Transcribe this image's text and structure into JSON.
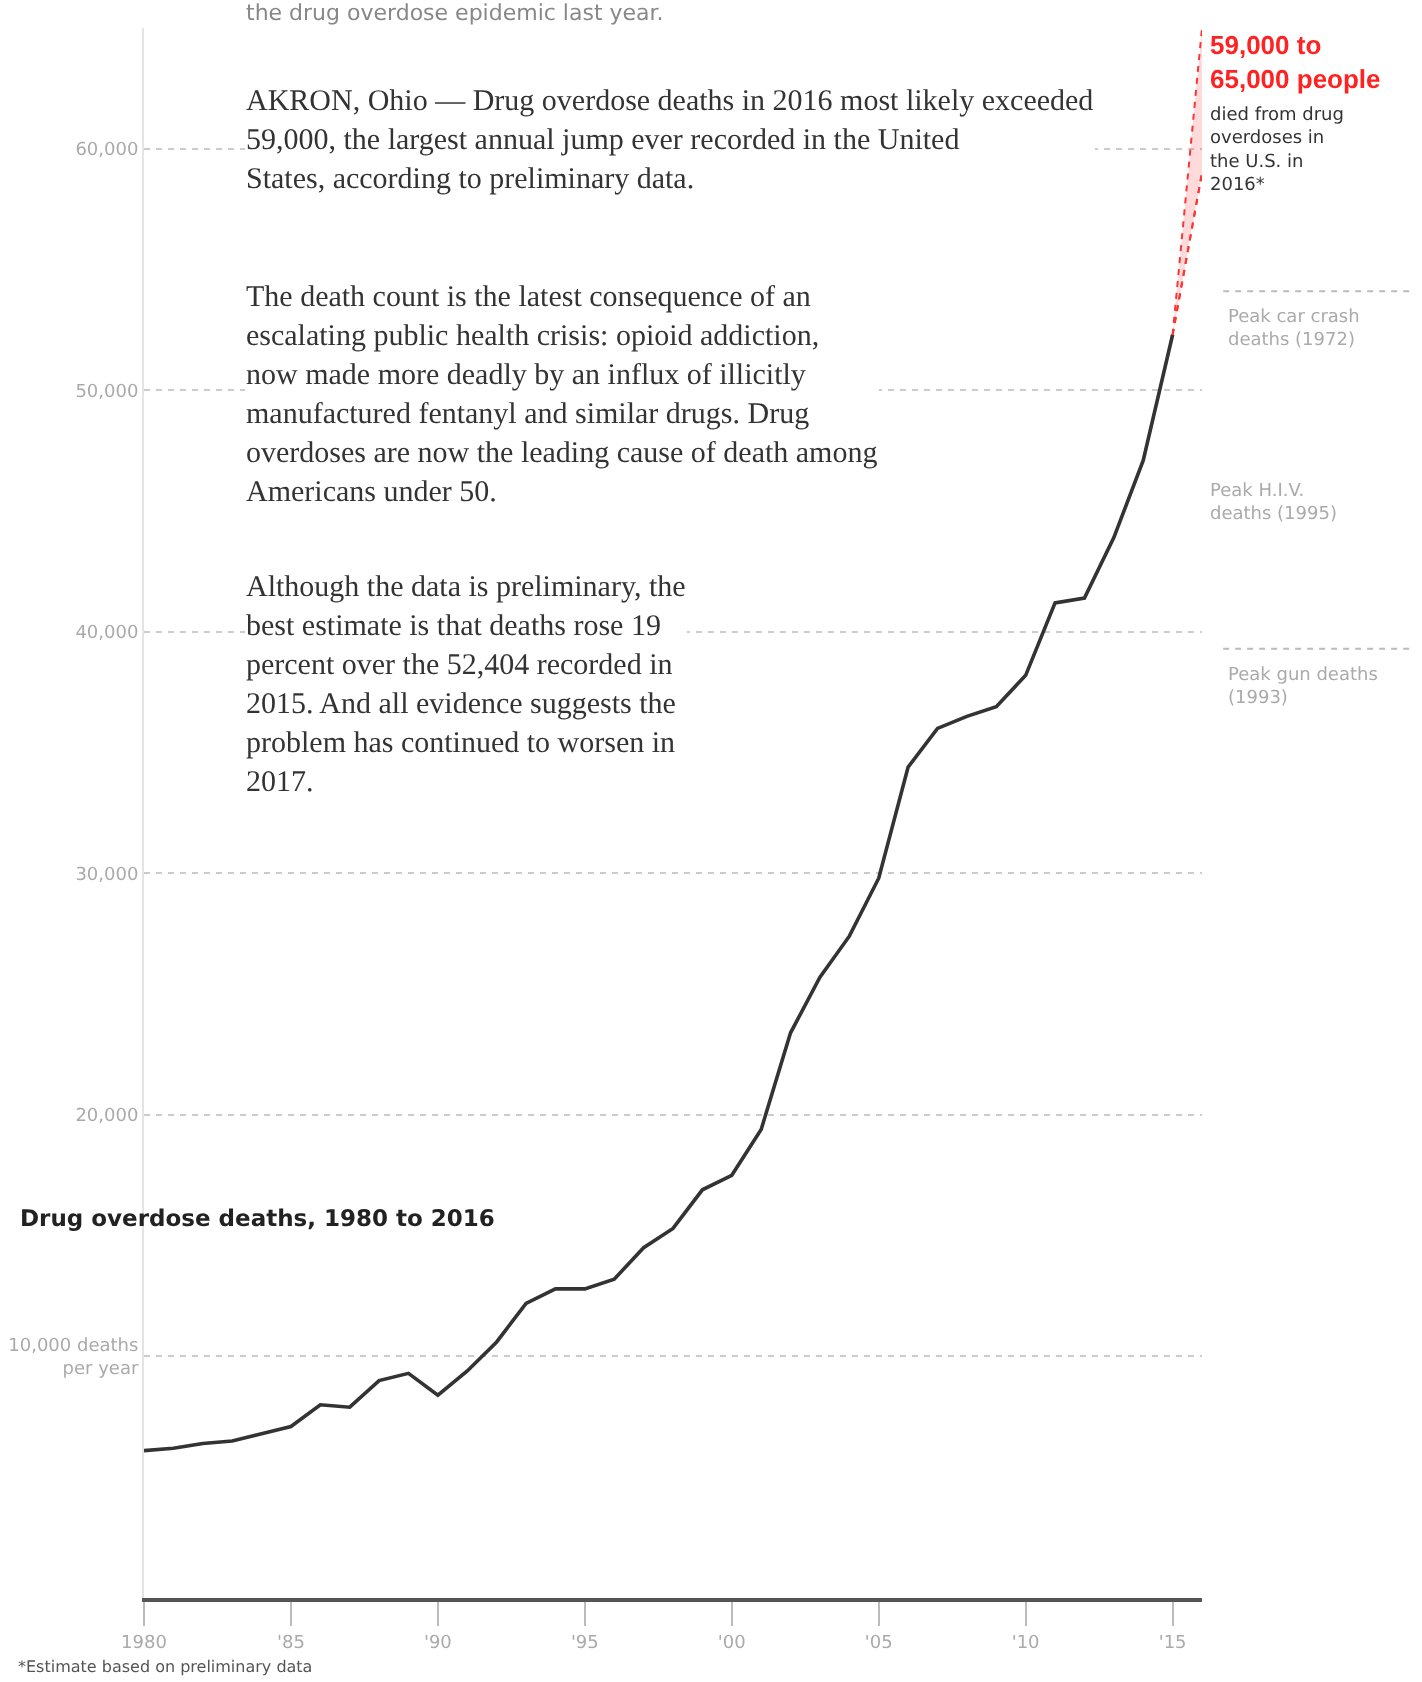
{
  "chart_data": {
    "type": "line",
    "title": "Drug overdose deaths, 1980 to 2016",
    "x": [
      1980,
      1981,
      1982,
      1983,
      1984,
      1985,
      1986,
      1987,
      1988,
      1989,
      1990,
      1991,
      1992,
      1993,
      1994,
      1995,
      1996,
      1997,
      1998,
      1999,
      2000,
      2001,
      2002,
      2003,
      2004,
      2005,
      2006,
      2007,
      2008,
      2009,
      2010,
      2011,
      2012,
      2013,
      2014,
      2015
    ],
    "series": [
      {
        "color": "#333333",
        "line_style": "solid",
        "values": [
          6100,
          6200,
          6400,
          6500,
          6800,
          7100,
          8000,
          7900,
          9000,
          9300,
          8400,
          9400,
          10600,
          12200,
          12800,
          12800,
          13200,
          14500,
          15300,
          16900,
          17500,
          19400,
          23400,
          25700,
          27400,
          29800,
          34400,
          36000,
          36500,
          36900,
          38200,
          41200,
          41400,
          43900,
          47100,
          52300
        ]
      },
      {
        "color": "#ff3333",
        "line_style": "dotted",
        "x": [
          2015,
          2016
        ],
        "values": [
          52300,
          59000
        ],
        "lower": [
          52300,
          59000
        ],
        "upper": [
          52300,
          65000
        ]
      }
    ],
    "xlim": [
      1980,
      2016
    ],
    "xticks": [
      {
        "value": 1980,
        "label": "1980"
      },
      {
        "value": 1985,
        "label": "'85"
      },
      {
        "value": 1990,
        "label": "'90"
      },
      {
        "value": 1995,
        "label": "'95"
      },
      {
        "value": 2000,
        "label": "'00"
      },
      {
        "value": 2005,
        "label": "'05"
      },
      {
        "value": 2010,
        "label": "'10"
      },
      {
        "value": 2015,
        "label": "'15"
      }
    ],
    "ylim": [
      0,
      65000
    ],
    "yticks": [
      {
        "value": 10000,
        "label": "10,000 deaths per year"
      },
      {
        "value": 20000,
        "label": "20,000"
      },
      {
        "value": 30000,
        "label": "30,000"
      },
      {
        "value": 40000,
        "label": "40,000"
      },
      {
        "value": 50000,
        "label": "50,000"
      },
      {
        "value": 60000,
        "label": "60,000"
      }
    ],
    "grid": "y",
    "marker": "none",
    "ref_lines": [
      {
        "axis": "y",
        "value": 54100,
        "label": "Peak car crash deaths (1972)",
        "color": "#bbbbbb",
        "line_style": "dotted"
      },
      {
        "axis": "y",
        "value": 39300,
        "label": "Peak gun deaths (1993)",
        "color": "#bbbbbb",
        "line_style": "dotted"
      }
    ],
    "annotations": [
      "the drug overdose epidemic last year.",
      "AKRON, Ohio — Drug overdose deaths in 2016 most likely exceeded 59,000, the largest annual jump ever recorded in the United States, according to preliminary data.",
      "The death count is the latest consequence of an escalating public health crisis: opioid addiction, now made more deadly by an influx of illicitly manufactured fentanyl and similar drugs. Drug overdoses are now the leading cause of death among Americans under 50.",
      "Although the data is preliminary, the best estimate is that deaths rose 19 percent over the 52,404 recorded in 2015. And all evidence suggests the problem has continued to worsen in 2017.",
      {
        "text": "59,000 to 65,000 people",
        "x": 2016,
        "y": 65000
      },
      "died from drug overdoses in the U.S. in 2016*",
      "*Estimate based on preliminary data",
      "Peak H.I.V. deaths (1995)"
    ]
  }
}
